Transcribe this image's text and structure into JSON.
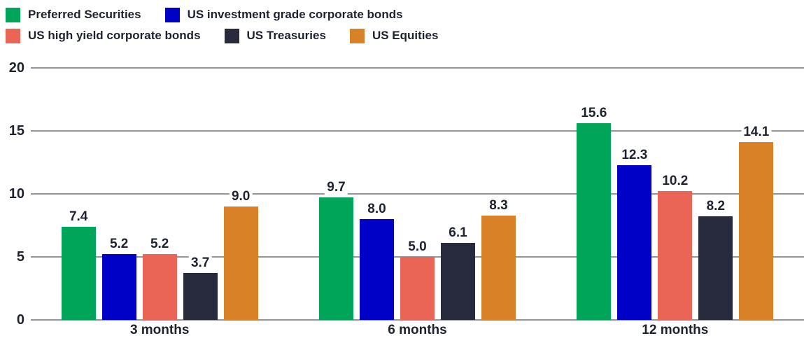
{
  "colors": {
    "background": "#FFFFFF",
    "text": "#1E2230",
    "gridline": "#94949B"
  },
  "legend": {
    "position": "top",
    "rows": [
      [
        0,
        1
      ],
      [
        2,
        3,
        4
      ]
    ]
  },
  "chart_data": {
    "type": "bar",
    "title": "",
    "xlabel": "",
    "ylabel": "",
    "categories": [
      "3 months",
      "6 months",
      "12 months"
    ],
    "series": [
      {
        "name": "Preferred Securities",
        "color": "#00A55A",
        "values": [
          7.4,
          9.7,
          15.6
        ]
      },
      {
        "name": "US investment grade corporate bonds",
        "color": "#0001C7",
        "values": [
          5.2,
          8.0,
          12.3
        ]
      },
      {
        "name": "US high yield corporate bonds",
        "color": "#EB6557",
        "values": [
          5.2,
          5.0,
          10.2
        ]
      },
      {
        "name": "US Treasuries",
        "color": "#282B3D",
        "values": [
          3.7,
          6.1,
          8.2
        ]
      },
      {
        "name": "US Equities",
        "color": "#D88127",
        "values": [
          9.0,
          8.3,
          14.1
        ]
      }
    ],
    "y_ticks": [
      0,
      5,
      10,
      15,
      20
    ],
    "ylim": [
      0,
      20
    ],
    "grid": true,
    "legend_position": "top",
    "value_labels": true,
    "value_label_decimals": 1
  }
}
